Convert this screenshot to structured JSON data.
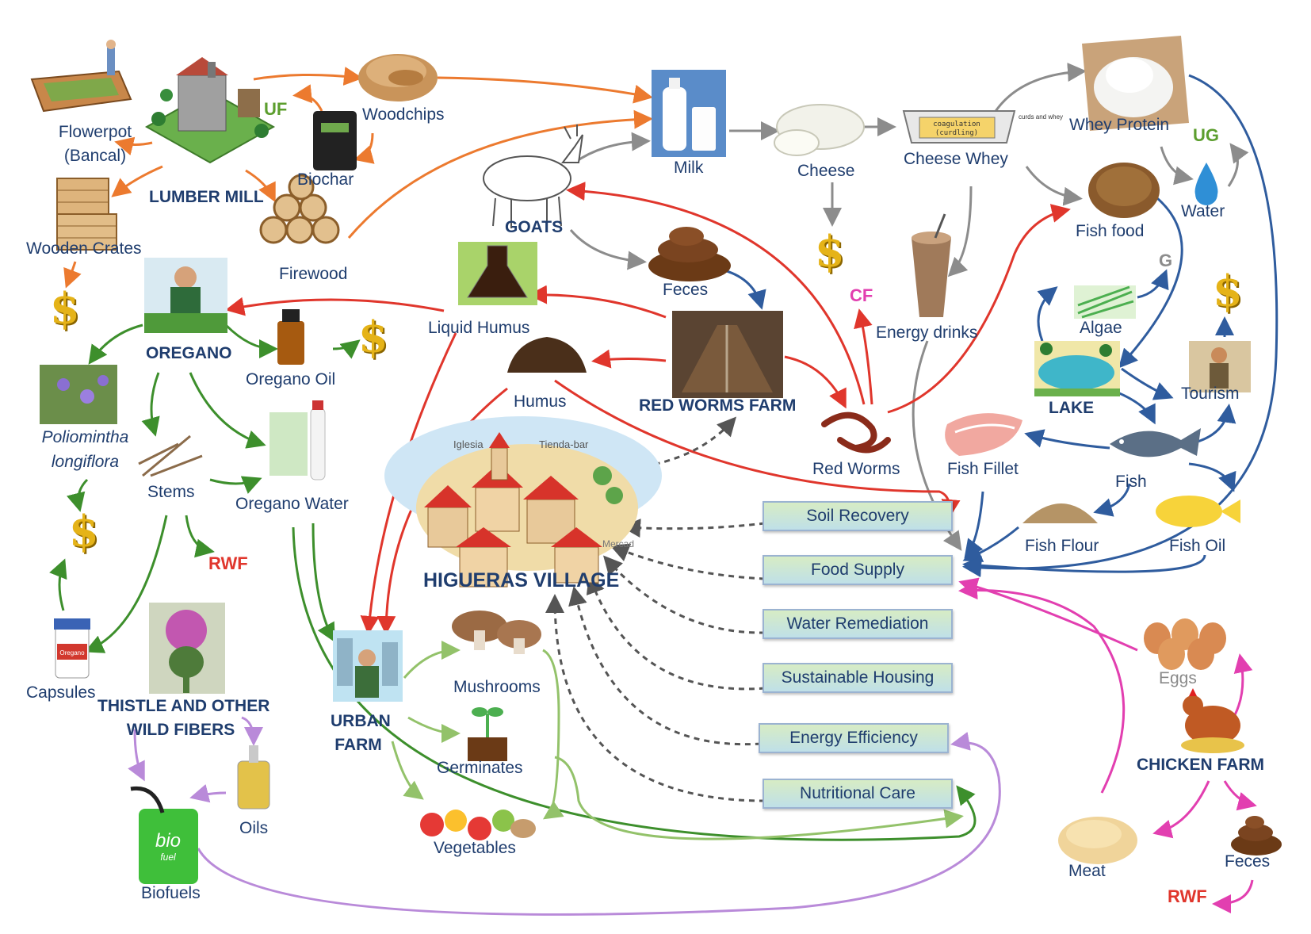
{
  "nodes": {
    "flowerpot": "Flowerpot",
    "flowerpot_sub": "(Bancal)",
    "lumber_mill": "LUMBER MILL",
    "woodchips": "Woodchips",
    "biochar": "Biochar",
    "wooden_crates": "Wooden Crates",
    "firewood": "Firewood",
    "milk": "Milk",
    "cheese": "Cheese",
    "cheese_whey": "Cheese Whey",
    "whey_protein": "Whey Protein",
    "goats": "GOATS",
    "feces_goats": "Feces",
    "liquid_humus": "Liquid Humus",
    "humus": "Humus",
    "red_worms_farm": "RED WORMS FARM",
    "red_worms": "Red Worms",
    "energy_drinks": "Energy drinks",
    "fish_food": "Fish food",
    "water": "Water",
    "algae": "Algae",
    "lake": "LAKE",
    "tourism": "Tourism",
    "fish_fillet": "Fish Fillet",
    "fish": "Fish",
    "fish_flour": "Fish Flour",
    "fish_oil": "Fish Oil",
    "oregano": "OREGANO",
    "oregano_oil": "Oregano Oil",
    "poliomintha_1": "Poliomintha",
    "poliomintha_2": "longiflora",
    "stems": "Stems",
    "oregano_water": "Oregano Water",
    "capsules": "Capsules",
    "thistle_1": "THISTLE AND OTHER",
    "thistle_2": "WILD FIBERS",
    "oils": "Oils",
    "biofuels": "Biofuels",
    "higueras_village": "HIGUERAS VILLAGE",
    "urban_farm_1": "URBAN",
    "urban_farm_2": "FARM",
    "mushrooms": "Mushrooms",
    "germinates": "Germinates",
    "vegetables": "Vegetables",
    "eggs": "Eggs",
    "chicken_farm": "CHICKEN FARM",
    "meat": "Meat",
    "feces_chicken": "Feces"
  },
  "village_labels": {
    "church": "Iglesia",
    "shop": "Tienda-bar",
    "market": "Mercad"
  },
  "image_text": {
    "cheese_whey_box_1": "coagulation",
    "cheese_whey_box_2": "(curdling)",
    "cheese_whey_side": "curds and whey",
    "biofuel_can_1": "bio",
    "biofuel_can_2": "fuel",
    "capsules_label": "Oregano"
  },
  "tags": {
    "uf": "UF",
    "ug": "UG",
    "cf": "CF",
    "g": "G",
    "rwf_stems": "RWF",
    "rwf_chicken": "RWF"
  },
  "dollar_symbol": "$",
  "outcomes": [
    "Soil Recovery",
    "Food Supply",
    "Water Remediation",
    "Sustainable Housing",
    "Energy Efficiency",
    "Nutritional Care"
  ],
  "colors": {
    "lumber_flow": "#ec7a2f",
    "dairy_flow": "#8c8c8c",
    "humus_flow": "#e0362c",
    "fish_flow": "#2f5c9e",
    "oregano_flow": "#3d8f2c",
    "urban_flow": "#93c26a",
    "thistle_flow": "#b98ad9",
    "chicken_flow": "#e23fb0",
    "village_link": "#555555",
    "label_text": "#1f3d6e",
    "tag_green": "#5c9e2e",
    "tag_red": "#e0362c",
    "tag_pink": "#e23fb0",
    "dollar_gold": "#e5b318"
  }
}
